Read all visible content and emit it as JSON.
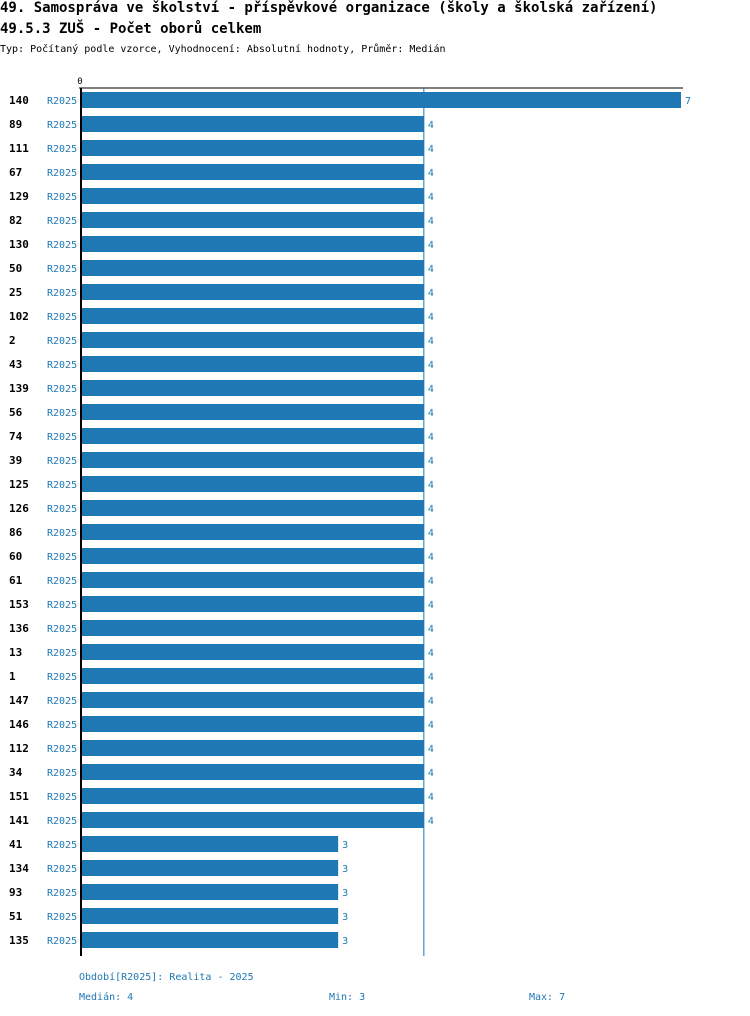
{
  "header": {
    "title_line1": "49. Samospráva ve školství - příspěvkové organizace (školy a školská zařízení)",
    "title_line2": "49.5.3 ZUŠ - Počet oborů celkem",
    "subtitle": "Typ: Počítaný podle vzorce, Vyhodnocení: Absolutní hodnoty, Průměr: Medián"
  },
  "chart_data": {
    "type": "bar",
    "orientation": "horizontal",
    "series_label": "R2025",
    "categories": [
      "140",
      "89",
      "111",
      "67",
      "129",
      "82",
      "130",
      "50",
      "25",
      "102",
      "2",
      "43",
      "139",
      "56",
      "74",
      "39",
      "125",
      "126",
      "86",
      "60",
      "61",
      "153",
      "136",
      "13",
      "1",
      "147",
      "146",
      "112",
      "34",
      "151",
      "141",
      "41",
      "134",
      "93",
      "51",
      "135"
    ],
    "values": [
      7,
      4,
      4,
      4,
      4,
      4,
      4,
      4,
      4,
      4,
      4,
      4,
      4,
      4,
      4,
      4,
      4,
      4,
      4,
      4,
      4,
      4,
      4,
      4,
      4,
      4,
      4,
      4,
      4,
      4,
      4,
      3,
      3,
      3,
      3,
      3
    ],
    "xlim": [
      0,
      7
    ],
    "x_tick_labels": [
      "0"
    ],
    "reference_line": 4,
    "bar_color": "#1f77b4"
  },
  "footer": {
    "period": "Období[R2025]: Realita - 2025",
    "median": "Medián: 4",
    "min": "Min: 3",
    "max": "Max: 7"
  }
}
